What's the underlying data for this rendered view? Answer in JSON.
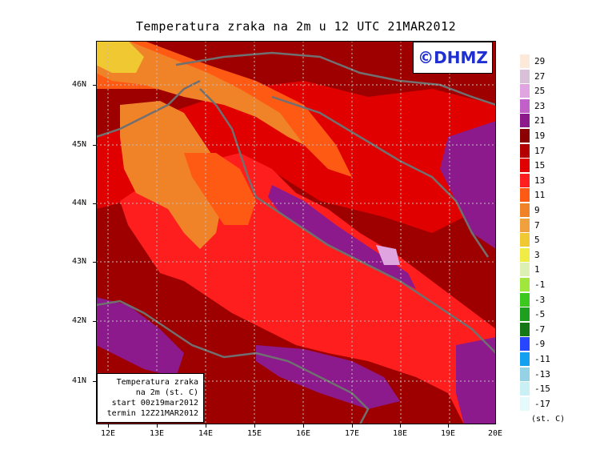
{
  "title": "Temperatura zraka na 2m u 12 UTC 21MAR2012",
  "logo": "©DHMZ",
  "infobox": {
    "line1": "Temperatura zraka",
    "line2": "na 2m (st. C)",
    "line3": "start 00z19mar2012",
    "line4": "termin 12Z21MAR2012"
  },
  "lat_labels": [
    "46N",
    "45N",
    "44N",
    "43N",
    "42N",
    "41N"
  ],
  "lon_labels": [
    "12E",
    "13E",
    "14E",
    "15E",
    "16E",
    "17E",
    "18E",
    "19E",
    "20E"
  ],
  "legend": {
    "unit": "(st. C)",
    "labels": [
      "29",
      "27",
      "25",
      "23",
      "21",
      "19",
      "17",
      "15",
      "13",
      "11",
      "9",
      "7",
      "5",
      "3",
      "1",
      "-1",
      "-3",
      "-5",
      "-7",
      "-9",
      "-11",
      "-13",
      "-15",
      "-17"
    ],
    "colors": [
      "#fde9d9",
      "#d9c0d9",
      "#e0a4e0",
      "#c060c8",
      "#8c1a8c",
      "#8b0000",
      "#b30000",
      "#e10000",
      "#ff1e1e",
      "#ff5a14",
      "#f08228",
      "#f0a03c",
      "#f0c832",
      "#f0eb46",
      "#dcf0b4",
      "#a0e63c",
      "#3cc81e",
      "#1ea01e",
      "#147814",
      "#2846ff",
      "#14a0f0",
      "#96d2e6",
      "#c8f0f5",
      "#e6fafa"
    ]
  },
  "map_colors": {
    "land_dark": "#9e0000",
    "sea": "#ff1e1e",
    "warm_land": "#e10000",
    "orange": "#ff5a14",
    "light_orange": "#f08228",
    "cool": "#8c1a8c",
    "coast": "#707070"
  }
}
